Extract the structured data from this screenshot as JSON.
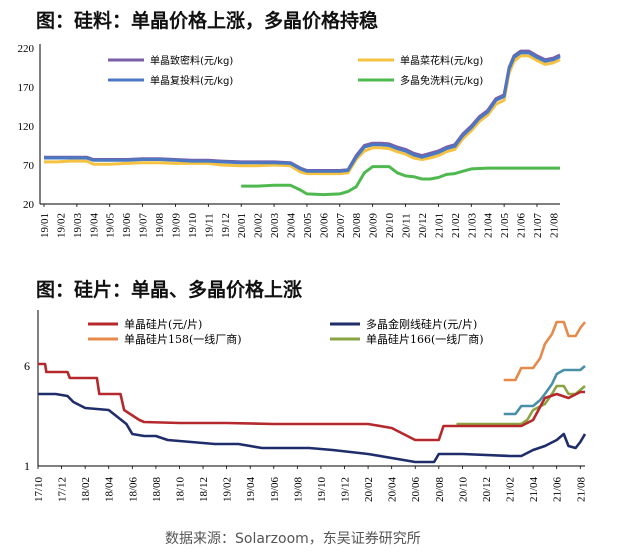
{
  "chart_data": [
    {
      "type": "line",
      "title": "图：硅料：单晶价格上涨，多晶价格持稳",
      "ylim": [
        20,
        220
      ],
      "yticks": [
        20,
        70,
        120,
        170,
        220
      ],
      "xticks": [
        "19/01",
        "19/02",
        "19/03",
        "19/04",
        "19/05",
        "19/06",
        "19/07",
        "19/08",
        "19/09",
        "19/10",
        "19/11",
        "19/12",
        "20/01",
        "20/02",
        "20/03",
        "20/04",
        "20/05",
        "20/06",
        "20/07",
        "20/08",
        "20/09",
        "20/10",
        "20/11",
        "20/12",
        "21/01",
        "21/02",
        "21/03",
        "21/04",
        "21/05",
        "21/06",
        "21/07",
        "21/08"
      ],
      "legend_placement": "top",
      "series": [
        {
          "name": "单晶致密料(元/kg)",
          "color": "#7b5ea7",
          "x": [
            0,
            0.8,
            1.6,
            2.6,
            3.0,
            4.0,
            5.0,
            6.0,
            7.0,
            8.0,
            9.0,
            10.0,
            10.8,
            12.0,
            13.0,
            14.0,
            15.0,
            15.6,
            16.0,
            17.0,
            18.0,
            18.5,
            19.0,
            19.5,
            20.0,
            20.5,
            21.0,
            21.5,
            22.0,
            22.5,
            23.0,
            23.5,
            24.0,
            24.5,
            25.0,
            25.5,
            26.0,
            26.5,
            27.0,
            27.5,
            28.0,
            28.3,
            28.6,
            29.0,
            29.5,
            30.0,
            30.5,
            31.0,
            31.4
          ],
          "y": [
            80,
            80,
            80,
            80,
            77,
            77,
            77,
            78,
            78,
            77,
            76,
            76,
            75,
            74,
            74,
            74,
            73,
            66,
            63,
            63,
            63,
            64,
            82,
            95,
            98,
            98,
            97,
            93,
            90,
            85,
            82,
            85,
            88,
            93,
            96,
            110,
            120,
            132,
            140,
            155,
            160,
            195,
            210,
            216,
            216,
            210,
            205,
            207,
            211
          ]
        },
        {
          "name": "单晶复投料(元/kg)",
          "color": "#4a78c2",
          "x": [
            0,
            0.8,
            1.6,
            2.6,
            3.0,
            4.0,
            5.0,
            6.0,
            7.0,
            8.0,
            9.0,
            10.0,
            10.8,
            12.0,
            13.0,
            14.0,
            15.0,
            15.6,
            16.0,
            17.0,
            18.0,
            18.5,
            19.0,
            19.5,
            20.0,
            20.5,
            21.0,
            21.5,
            22.0,
            22.5,
            23.0,
            23.5,
            24.0,
            24.5,
            25.0,
            25.5,
            26.0,
            26.5,
            27.0,
            27.5,
            28.0,
            28.3,
            28.6,
            29.0,
            29.5,
            30.0,
            30.5,
            31.0,
            31.4
          ],
          "y": [
            79,
            79,
            79,
            79,
            76,
            76,
            76,
            77,
            77,
            76,
            75,
            75,
            74,
            73,
            73,
            73,
            72,
            65,
            62,
            62,
            62,
            63,
            80,
            93,
            96,
            96,
            95,
            91,
            88,
            83,
            80,
            83,
            86,
            91,
            94,
            108,
            118,
            130,
            138,
            153,
            158,
            193,
            208,
            214,
            214,
            208,
            203,
            205,
            209
          ]
        },
        {
          "name": "单晶菜花料(元/kg)",
          "color": "#f5c242",
          "x": [
            0,
            0.8,
            1.6,
            2.6,
            3.0,
            4.0,
            5.0,
            6.0,
            7.0,
            8.0,
            9.0,
            10.0,
            10.8,
            12.0,
            13.0,
            14.0,
            15.0,
            15.6,
            16.0,
            17.0,
            18.0,
            18.5,
            19.0,
            19.5,
            20.0,
            20.5,
            21.0,
            21.5,
            22.0,
            22.5,
            23.0,
            23.5,
            24.0,
            24.5,
            25.0,
            25.5,
            26.0,
            26.5,
            27.0,
            27.5,
            28.0,
            28.3,
            28.6,
            29.0,
            29.5,
            30.0,
            30.5,
            31.0,
            31.4
          ],
          "y": [
            74,
            74,
            75,
            75,
            71,
            71,
            72,
            73,
            73,
            72,
            72,
            72,
            70,
            69,
            69,
            70,
            69,
            61,
            59,
            59,
            59,
            60,
            77,
            88,
            92,
            92,
            91,
            87,
            84,
            79,
            77,
            79,
            82,
            87,
            90,
            104,
            114,
            126,
            134,
            148,
            153,
            188,
            203,
            210,
            210,
            204,
            199,
            201,
            205
          ]
        },
        {
          "name": "多晶免洗料(元/kg)",
          "color": "#4fb84f",
          "x": [
            12.0,
            13.0,
            14.0,
            15.0,
            15.6,
            16.0,
            17.0,
            18.0,
            18.5,
            19.0,
            19.5,
            20.0,
            20.5,
            21.0,
            21.5,
            22.0,
            22.5,
            23.0,
            23.5,
            24.0,
            24.5,
            25.0,
            25.5,
            26.0,
            27.0,
            28.0,
            29.0,
            30.0,
            31.0,
            31.4
          ],
          "y": [
            43,
            43,
            44,
            44,
            38,
            33,
            32,
            33,
            36,
            42,
            60,
            68,
            68,
            68,
            60,
            56,
            55,
            52,
            52,
            54,
            58,
            59,
            62,
            65,
            66,
            66,
            66,
            66,
            66,
            66
          ]
        }
      ]
    },
    {
      "type": "line",
      "title": "图：硅片：单晶、多晶价格上涨",
      "yticks": [
        1,
        6
      ],
      "xticks": [
        "17/10",
        "17/11",
        "17/12",
        "18/01",
        "18/02",
        "18/03",
        "18/04",
        "18/05",
        "18/06",
        "18/07",
        "18/08",
        "18/09",
        "18/10",
        "18/11",
        "18/12",
        "19/01",
        "19/02",
        "19/03",
        "19/04",
        "19/05",
        "19/06",
        "19/07",
        "19/08",
        "19/09",
        "19/10",
        "19/11",
        "19/12",
        "20/01",
        "20/02",
        "20/03",
        "20/04",
        "20/05",
        "20/06",
        "20/07",
        "20/08",
        "20/09",
        "20/10",
        "20/11",
        "20/12",
        "21/01",
        "21/02",
        "21/03",
        "21/04",
        "21/05",
        "21/06",
        "21/07",
        "21/08"
      ],
      "legend_placement": "top",
      "series": [
        {
          "name": "单晶硅片(元/片)",
          "color": "#b5292c"
        },
        {
          "name": "单晶硅片158(一线厂商)",
          "color": "#e58a4a"
        },
        {
          "name": "多晶金刚线硅片(元/片)",
          "color": "#1f2d6b"
        },
        {
          "name": "单晶硅片166(一线厂商)",
          "color": "#8aa444"
        },
        {
          "name": "",
          "color": "#4a8fa8"
        }
      ]
    }
  ],
  "source": "数据来源：Solarzoom，东吴证券研究所"
}
